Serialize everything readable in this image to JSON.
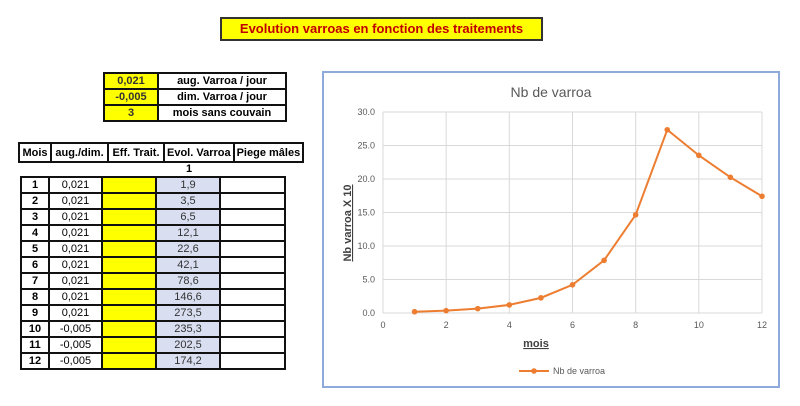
{
  "title": "Evolution varroas en fonction des traitements",
  "params": [
    {
      "value": "0,021",
      "label": "aug. Varroa / jour"
    },
    {
      "value": "-0,005",
      "label": "dim. Varroa / jour"
    },
    {
      "value": "3",
      "label": "mois sans couvain"
    }
  ],
  "headers": [
    "Mois",
    "aug./dim.",
    "Eff.  Trait.",
    "Evol. Varroa",
    "Piege mâles"
  ],
  "initial": "1",
  "rows": [
    {
      "mois": "1",
      "aug": "0,021",
      "evol": "1,9"
    },
    {
      "mois": "2",
      "aug": "0,021",
      "evol": "3,5"
    },
    {
      "mois": "3",
      "aug": "0,021",
      "evol": "6,5"
    },
    {
      "mois": "4",
      "aug": "0,021",
      "evol": "12,1"
    },
    {
      "mois": "5",
      "aug": "0,021",
      "evol": "22,6"
    },
    {
      "mois": "6",
      "aug": "0,021",
      "evol": "42,1"
    },
    {
      "mois": "7",
      "aug": "0,021",
      "evol": "78,6"
    },
    {
      "mois": "8",
      "aug": "0,021",
      "evol": "146,6"
    },
    {
      "mois": "9",
      "aug": "0,021",
      "evol": "273,5"
    },
    {
      "mois": "10",
      "aug": "-0,005",
      "evol": "235,3"
    },
    {
      "mois": "11",
      "aug": "-0,005",
      "evol": "202,5"
    },
    {
      "mois": "12",
      "aug": "-0,005",
      "evol": "174,2"
    }
  ],
  "chart_data": {
    "type": "scatter",
    "title": "Nb de varroa",
    "xlabel": "mois",
    "ylabel": "Nb varroa X 10",
    "xlim": [
      0,
      12
    ],
    "ylim": [
      0,
      30
    ],
    "xticks": [
      "0",
      "2",
      "4",
      "6",
      "8",
      "10",
      "12"
    ],
    "yticks": [
      "0.0",
      "5.0",
      "10.0",
      "15.0",
      "20.0",
      "25.0",
      "30.0"
    ],
    "grid": true,
    "legend": "bottom",
    "series": [
      {
        "name": "Nb de varroa",
        "color": "#ed7d31",
        "x": [
          1,
          2,
          3,
          4,
          5,
          6,
          7,
          8,
          9,
          10,
          11,
          12
        ],
        "y": [
          0.19,
          0.35,
          0.65,
          1.21,
          2.26,
          4.21,
          7.86,
          14.66,
          27.35,
          23.53,
          20.25,
          17.42
        ]
      }
    ]
  }
}
